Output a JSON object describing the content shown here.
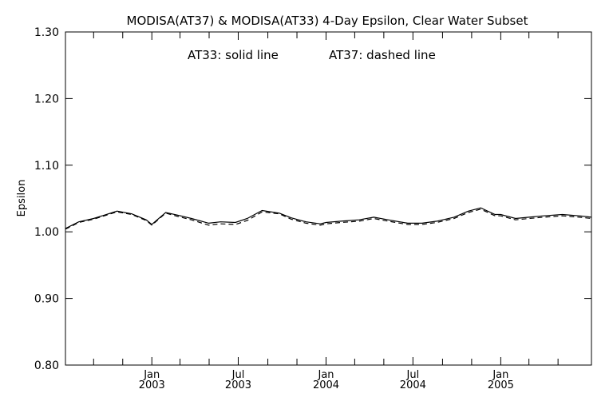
{
  "chart_data": {
    "type": "line",
    "title": "MODISA(AT37) & MODISA(AT33) 4-Day Epsilon, Clear Water Subset",
    "annotation_left": "AT33: solid line",
    "annotation_right": "AT37: dashed line",
    "xlabel": "",
    "ylabel": "Epsilon",
    "ylim": [
      0.8,
      1.3
    ],
    "xlim": [
      "2002-07-04",
      "2005-07-10"
    ],
    "yticks": [
      {
        "value": 0.8,
        "label": "0.80"
      },
      {
        "value": 0.9,
        "label": "0.90"
      },
      {
        "value": 1.0,
        "label": "1.00"
      },
      {
        "value": 1.1,
        "label": "1.10"
      },
      {
        "value": 1.2,
        "label": "1.20"
      },
      {
        "value": 1.3,
        "label": "1.30"
      }
    ],
    "xticks_labeled": [
      {
        "date": "2003-01-01",
        "month": "Jan",
        "year": "2003"
      },
      {
        "date": "2003-07-01",
        "month": "Jul",
        "year": "2003"
      },
      {
        "date": "2004-01-01",
        "month": "Jan",
        "year": "2004"
      },
      {
        "date": "2004-07-01",
        "month": "Jul",
        "year": "2004"
      },
      {
        "date": "2005-01-01",
        "month": "Jan",
        "year": "2005"
      }
    ],
    "xticks_minor": [
      "2002-09-01",
      "2002-11-01",
      "2003-03-01",
      "2003-05-01",
      "2003-09-01",
      "2003-11-01",
      "2004-03-01",
      "2004-05-01",
      "2004-09-01",
      "2004-11-01",
      "2005-03-01",
      "2005-05-01"
    ],
    "grid": false,
    "series": [
      {
        "name": "AT33",
        "style": "solid",
        "color": "#000000",
        "x": [
          "2002-07-04",
          "2002-08-01",
          "2002-09-01",
          "2002-10-20",
          "2002-11-20",
          "2002-12-20",
          "2003-01-01",
          "2003-01-30",
          "2003-02-25",
          "2003-03-25",
          "2003-04-30",
          "2003-05-25",
          "2003-06-25",
          "2003-07-20",
          "2003-08-20",
          "2003-09-25",
          "2003-10-20",
          "2003-11-20",
          "2003-12-20",
          "2004-01-01",
          "2004-02-01",
          "2004-03-10",
          "2004-04-10",
          "2004-05-10",
          "2004-06-20",
          "2004-07-20",
          "2004-08-20",
          "2004-09-25",
          "2004-10-25",
          "2004-11-20",
          "2004-12-20",
          "2005-01-01",
          "2005-02-01",
          "2005-03-01",
          "2005-04-01",
          "2005-05-10",
          "2005-06-15",
          "2005-07-10"
        ],
        "y": [
          1.005,
          1.015,
          1.02,
          1.031,
          1.027,
          1.018,
          1.011,
          1.029,
          1.025,
          1.02,
          1.013,
          1.015,
          1.014,
          1.02,
          1.032,
          1.028,
          1.021,
          1.015,
          1.012,
          1.014,
          1.016,
          1.018,
          1.022,
          1.018,
          1.013,
          1.013,
          1.016,
          1.022,
          1.031,
          1.036,
          1.026,
          1.026,
          1.02,
          1.022,
          1.024,
          1.026,
          1.024,
          1.022
        ]
      },
      {
        "name": "AT37",
        "style": "dashed",
        "color": "#000000",
        "x": [
          "2002-07-04",
          "2002-08-01",
          "2002-09-01",
          "2002-10-20",
          "2002-11-20",
          "2002-12-20",
          "2003-01-01",
          "2003-01-30",
          "2003-02-25",
          "2003-03-25",
          "2003-04-30",
          "2003-05-25",
          "2003-06-25",
          "2003-07-20",
          "2003-08-20",
          "2003-09-25",
          "2003-10-20",
          "2003-11-20",
          "2003-12-20",
          "2004-01-01",
          "2004-02-01",
          "2004-03-10",
          "2004-04-10",
          "2004-05-10",
          "2004-06-20",
          "2004-07-20",
          "2004-08-20",
          "2004-09-25",
          "2004-10-25",
          "2004-11-20",
          "2004-12-20",
          "2005-01-01",
          "2005-02-01",
          "2005-03-01",
          "2005-04-01",
          "2005-05-10",
          "2005-06-15",
          "2005-07-10"
        ],
        "y": [
          1.004,
          1.014,
          1.019,
          1.03,
          1.026,
          1.017,
          1.01,
          1.028,
          1.023,
          1.018,
          1.01,
          1.012,
          1.011,
          1.017,
          1.03,
          1.027,
          1.019,
          1.013,
          1.01,
          1.012,
          1.014,
          1.016,
          1.02,
          1.016,
          1.011,
          1.011,
          1.014,
          1.02,
          1.029,
          1.034,
          1.024,
          1.024,
          1.018,
          1.02,
          1.022,
          1.024,
          1.022,
          1.02
        ]
      }
    ]
  }
}
